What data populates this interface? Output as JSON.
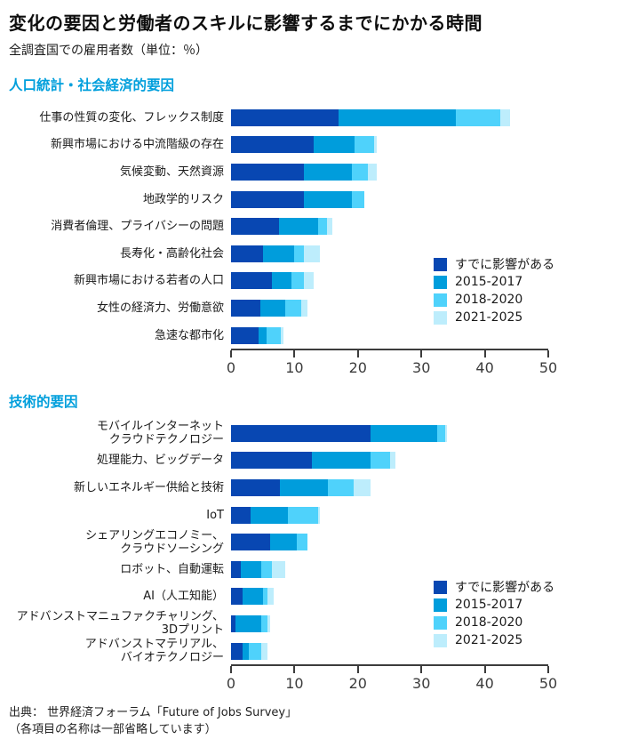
{
  "title": "変化の要因と労働者のスキルに影響するまでにかかる時間",
  "subtitle": "全調査国での雇用者数（単位：％）",
  "legend": [
    "すでに影響がある",
    "2015-2017",
    "2018-2020",
    "2021-2025"
  ],
  "colors": {
    "series": [
      "#0847B2",
      "#009DDC",
      "#4FD2FB",
      "#BDEDFC"
    ],
    "section_header": "#009FDC",
    "axis": "#3C3C3C"
  },
  "chart_data": [
    {
      "type": "bar",
      "orientation": "horizontal",
      "stacked": true,
      "title": "人口統計・社会経済的要因",
      "xlim": [
        0,
        50
      ],
      "xticks": [
        0,
        10,
        20,
        30,
        40,
        50
      ],
      "legend_position": "right-bottom",
      "categories": [
        [
          "仕事の性質の変化、フレックス制度"
        ],
        [
          "新興市場における中流階級の存在"
        ],
        [
          "気候変動、天然資源"
        ],
        [
          "地政学的リスク"
        ],
        [
          "消費者倫理、プライバシーの問題"
        ],
        [
          "長寿化・高齢化社会"
        ],
        [
          "新興市場における若者の人口"
        ],
        [
          "女性の経済力、労働意欲"
        ],
        [
          "急速な都市化"
        ]
      ],
      "series": [
        {
          "name": "すでに影響がある",
          "values": [
            17,
            13,
            11.5,
            11.5,
            7.6,
            5,
            6.5,
            4.6,
            4.3
          ]
        },
        {
          "name": "2015-2017",
          "values": [
            18.5,
            6.5,
            7.5,
            7.5,
            6.1,
            5,
            3,
            3.9,
            1.3
          ]
        },
        {
          "name": "2018-2020",
          "values": [
            7,
            3,
            2.5,
            2,
            1.4,
            1.5,
            2,
            2.5,
            2.2
          ]
        },
        {
          "name": "2021-2025",
          "values": [
            1.5,
            0.5,
            1.5,
            0,
            0.9,
            2.5,
            1.5,
            1,
            0.4
          ]
        }
      ]
    },
    {
      "type": "bar",
      "orientation": "horizontal",
      "stacked": true,
      "title": "技術的要因",
      "xlim": [
        0,
        50
      ],
      "xticks": [
        0,
        10,
        20,
        30,
        40,
        50
      ],
      "legend_position": "right-bottom",
      "categories": [
        [
          "モバイルインターネット",
          "クラウドテクノロジー"
        ],
        [
          "処理能力、ビッグデータ"
        ],
        [
          "新しいエネルギー供給と技術"
        ],
        [
          "IoT"
        ],
        [
          "シェアリングエコノミー、",
          "クラウドソーシング"
        ],
        [
          "ロボット、自動運転"
        ],
        [
          "AI（人工知能）"
        ],
        [
          "アドバンストマニュファクチャリング、",
          "3Dプリント"
        ],
        [
          "アドバンストマテリアル、",
          "バイオテクノロジー"
        ]
      ],
      "series": [
        {
          "name": "すでに影響がある",
          "values": [
            22,
            12.7,
            7.7,
            3.1,
            6.1,
            1.5,
            1.8,
            0.7,
            1.8
          ]
        },
        {
          "name": "2015-2017",
          "values": [
            10.5,
            9.3,
            7.6,
            5.9,
            4.2,
            3.2,
            3.2,
            4,
            1
          ]
        },
        {
          "name": "2018-2020",
          "values": [
            1.2,
            3.1,
            4,
            4.7,
            1.7,
            1.7,
            0.7,
            1,
            2
          ]
        },
        {
          "name": "2021-2025",
          "values": [
            0.3,
            0.8,
            2.7,
            0.3,
            0,
            2.2,
            1,
            0.5,
            1
          ]
        }
      ]
    }
  ],
  "source": [
    "出典： 世界経済フォーラム「Future of Jobs Survey」",
    "（各項目の名称は一部省略しています）"
  ]
}
